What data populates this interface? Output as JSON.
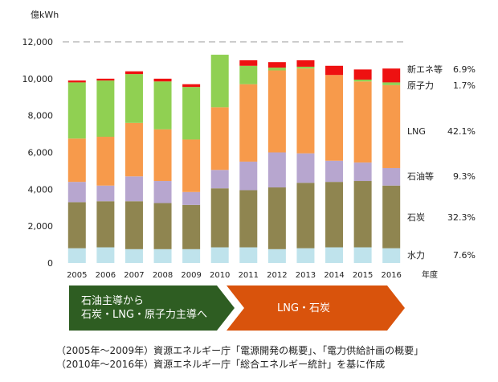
{
  "chart_data": {
    "type": "bar",
    "stacked": true,
    "y_unit_label": "億kWh",
    "x_unit_label": "年度",
    "ylim": [
      0,
      12000
    ],
    "yticks": [
      "0",
      "2,000",
      "4,000",
      "6,000",
      "8,000",
      "10,000",
      "12,000"
    ],
    "ytick_values": [
      0,
      2000,
      4000,
      6000,
      8000,
      10000,
      12000
    ],
    "grid": "dashed line at 12,000 only",
    "categories": [
      "2005",
      "2006",
      "2007",
      "2008",
      "2009",
      "2010",
      "2011",
      "2012",
      "2013",
      "2014",
      "2015",
      "2016"
    ],
    "series": [
      {
        "name": "水力",
        "color": "#bfe3ec",
        "values": [
          800,
          850,
          750,
          750,
          750,
          850,
          850,
          750,
          800,
          850,
          850,
          800
        ]
      },
      {
        "name": "石炭",
        "color": "#8f8550",
        "values": [
          2500,
          2500,
          2600,
          2500,
          2400,
          3200,
          3100,
          3350,
          3550,
          3550,
          3600,
          3400
        ]
      },
      {
        "name": "石油等",
        "color": "#b7a6cf",
        "values": [
          1100,
          850,
          1350,
          1200,
          700,
          1000,
          1550,
          1900,
          1600,
          1150,
          1000,
          950
        ]
      },
      {
        "name": "LNG",
        "color": "#f79a4b",
        "values": [
          2350,
          2650,
          2900,
          2800,
          2850,
          3400,
          4200,
          4450,
          4600,
          4650,
          4400,
          4500
        ]
      },
      {
        "name": "原子力",
        "color": "#90d052",
        "values": [
          3050,
          3050,
          2650,
          2600,
          2850,
          2850,
          1000,
          150,
          100,
          0,
          100,
          150
        ]
      },
      {
        "name": "新エネ等",
        "color": "#ee1111",
        "values": [
          100,
          100,
          150,
          150,
          150,
          0,
          300,
          300,
          350,
          500,
          550,
          750
        ]
      }
    ],
    "legend": [
      {
        "name": "新エネ等",
        "share": "6.9%"
      },
      {
        "name": "原子力",
        "share": "1.7%"
      },
      {
        "name": "LNG",
        "share": "42.1%"
      },
      {
        "name": "石油等",
        "share": "9.3%"
      },
      {
        "name": "石炭",
        "share": "32.3%"
      },
      {
        "name": "水力",
        "share": "7.6%"
      }
    ]
  },
  "arrows": {
    "left": [
      "石油主導から",
      "石炭・LNG・原子力主導へ"
    ],
    "right": "LNG・石炭",
    "left_color": "#2e5d22",
    "right_color": "#d9530c"
  },
  "notes": [
    "（2005年～2009年）資源エネルギー庁「電源開発の概要」、「電力供給計画の概要」",
    "（2010年～2016年）資源エネルギー庁「総合エネルギー統計」を基に作成"
  ]
}
